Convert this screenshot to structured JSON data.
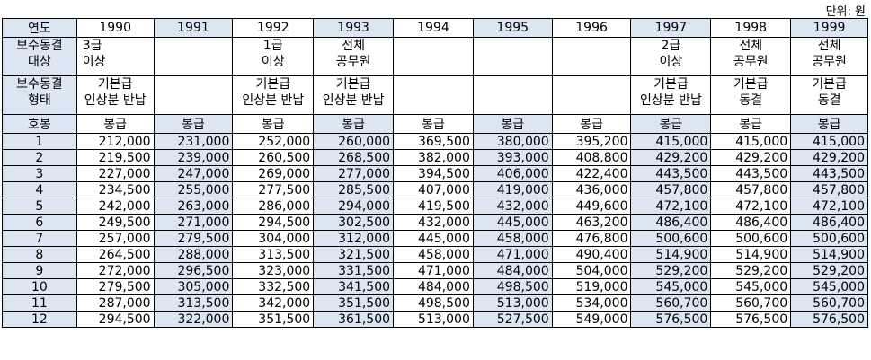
{
  "unit_note": "단위: 원",
  "table": {
    "col_label_year": "연도",
    "years": [
      "1990",
      "1991",
      "1992",
      "1993",
      "1994",
      "1995",
      "1996",
      "1997",
      "1998",
      "1999"
    ],
    "row_target_label": [
      "보수동결",
      "대상"
    ],
    "targets": [
      [
        "3급",
        "이상"
      ],
      [
        "",
        ""
      ],
      [
        "1급",
        "이상"
      ],
      [
        "전체",
        "공무원"
      ],
      [
        "",
        ""
      ],
      [
        "",
        ""
      ],
      [
        "",
        ""
      ],
      [
        "2급",
        "이상"
      ],
      [
        "전체",
        "공무원"
      ],
      [
        "전체",
        "공무원"
      ]
    ],
    "row_type_label": [
      "보수동결",
      "형태"
    ],
    "types": [
      [
        "기본급",
        "인상분 반납"
      ],
      [
        "",
        ""
      ],
      [
        "기본급",
        "인상분 반납"
      ],
      [
        "기본급",
        "인상분 반납"
      ],
      [
        "",
        ""
      ],
      [
        "",
        ""
      ],
      [
        "",
        ""
      ],
      [
        "기본급",
        "인상분 반납"
      ],
      [
        "기본급",
        "동결"
      ],
      [
        "기본급",
        "동결"
      ]
    ],
    "row_grade_label": "호봉",
    "pay_label": "봉급",
    "rows": [
      {
        "grade": "1",
        "values": [
          "212,000",
          "231,000",
          "252,000",
          "260,000",
          "369,500",
          "380,000",
          "395,200",
          "415,000",
          "415,000",
          "415,000"
        ]
      },
      {
        "grade": "2",
        "values": [
          "219,500",
          "239,000",
          "260,500",
          "268,500",
          "382,000",
          "393,000",
          "408,800",
          "429,200",
          "429,200",
          "429,200"
        ]
      },
      {
        "grade": "3",
        "values": [
          "227,000",
          "247,000",
          "269,000",
          "277,000",
          "394,500",
          "406,000",
          "422,400",
          "443,500",
          "443,500",
          "443,500"
        ]
      },
      {
        "grade": "4",
        "values": [
          "234,500",
          "255,000",
          "277,500",
          "285,500",
          "407,000",
          "419,000",
          "436,000",
          "457,800",
          "457,800",
          "457,800"
        ]
      },
      {
        "grade": "5",
        "values": [
          "242,000",
          "263,000",
          "286,000",
          "294,000",
          "419,500",
          "432,000",
          "449,600",
          "472,100",
          "472,100",
          "472,100"
        ]
      },
      {
        "grade": "6",
        "values": [
          "249,500",
          "271,000",
          "294,500",
          "302,500",
          "432,000",
          "445,000",
          "463,200",
          "486,400",
          "486,400",
          "486,400"
        ]
      },
      {
        "grade": "7",
        "values": [
          "257,000",
          "279,500",
          "304,000",
          "312,000",
          "445,000",
          "458,000",
          "476,800",
          "500,600",
          "500,600",
          "500,600"
        ]
      },
      {
        "grade": "8",
        "values": [
          "264,500",
          "288,000",
          "313,500",
          "321,500",
          "458,000",
          "471,000",
          "490,400",
          "514,900",
          "514,900",
          "514,900"
        ]
      },
      {
        "grade": "9",
        "values": [
          "272,000",
          "296,500",
          "323,000",
          "331,500",
          "471,000",
          "484,000",
          "504,000",
          "529,200",
          "529,200",
          "529,200"
        ]
      },
      {
        "grade": "10",
        "values": [
          "279,500",
          "305,000",
          "332,500",
          "341,500",
          "484,000",
          "498,500",
          "519,000",
          "545,000",
          "545,000",
          "545,000"
        ]
      },
      {
        "grade": "11",
        "values": [
          "287,000",
          "313,500",
          "342,000",
          "351,500",
          "498,500",
          "513,000",
          "534,000",
          "560,700",
          "560,700",
          "560,700"
        ]
      },
      {
        "grade": "12",
        "values": [
          "294,500",
          "322,000",
          "351,500",
          "361,500",
          "513,000",
          "527,500",
          "549,000",
          "576,500",
          "576,500",
          "576,500"
        ]
      }
    ]
  }
}
